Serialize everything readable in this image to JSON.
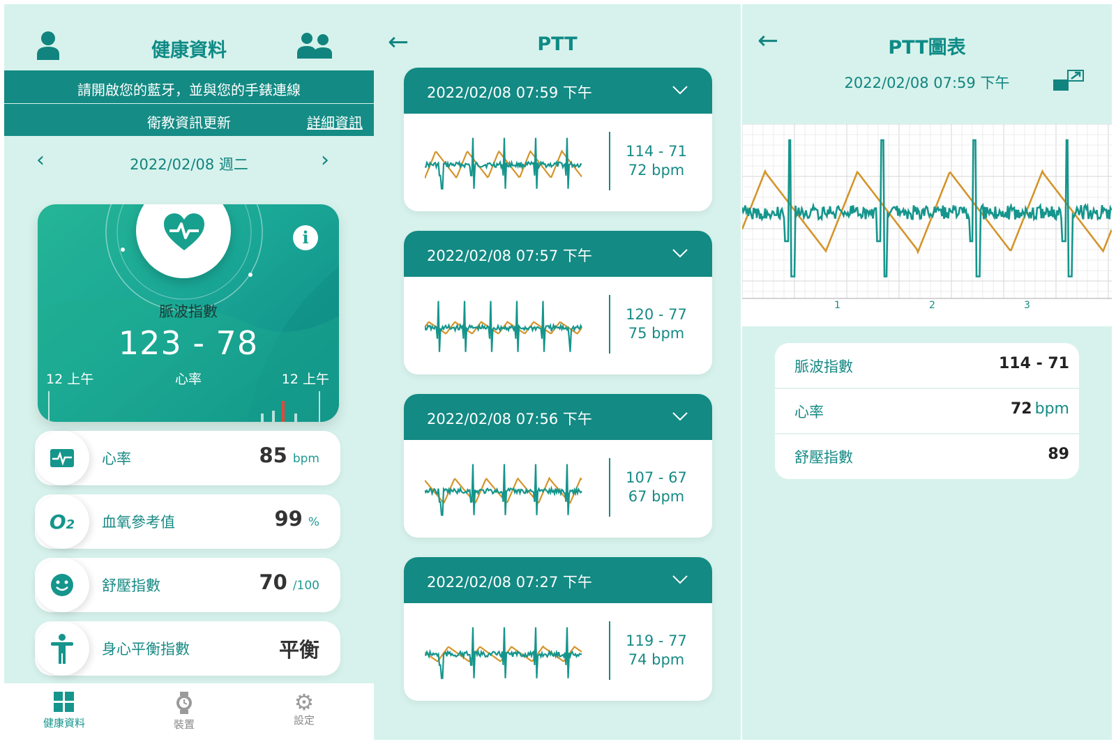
{
  "colors": {
    "teal_dark": "#138a83",
    "teal_text": "#178a85",
    "panel_bg": "#d7f2ec",
    "ecg_teal": "#15958c",
    "ppg_orange": "#d4942a",
    "alert_red": "#e04a3a"
  },
  "panel1": {
    "title": "健康資料",
    "banner_bluetooth": "請開啟您的藍牙，並與您的手錶連線",
    "banner_update": "衛教資訊更新",
    "banner_link": "詳細資訊",
    "date": "2022/02/08 週二",
    "pulse_card": {
      "label": "脈波指數",
      "value": "123 - 78",
      "left_time": "12 上午",
      "center_label": "心率",
      "right_time": "12 上午"
    },
    "metrics": [
      {
        "label": "心率",
        "value": "85",
        "unit": "bpm",
        "icon": "heart-rate-icon"
      },
      {
        "label": "血氧參考值",
        "value": "99",
        "unit": "%",
        "icon": "o2-icon"
      },
      {
        "label": "舒壓指數",
        "value": "70",
        "unit": "/100",
        "icon": "smile-icon"
      },
      {
        "label": "身心平衡指數",
        "value": "平衡",
        "unit": "",
        "icon": "body-balance-icon"
      }
    ],
    "tabs": [
      {
        "label": "健康資料",
        "icon": "grid-icon",
        "active": true
      },
      {
        "label": "裝置",
        "icon": "watch-icon",
        "active": false
      },
      {
        "label": "設定",
        "icon": "gear-icon",
        "active": false
      }
    ]
  },
  "panel2": {
    "title": "PTT",
    "records": [
      {
        "date": "2022/02/08 07:59 下午",
        "range": "114 - 71",
        "hr": "72 bpm"
      },
      {
        "date": "2022/02/08 07:57 下午",
        "range": "120 - 77",
        "hr": "75 bpm"
      },
      {
        "date": "2022/02/08 07:56 下午",
        "range": "107 - 67",
        "hr": "67 bpm"
      },
      {
        "date": "2022/02/08 07:27 下午",
        "range": "119 - 77",
        "hr": "74 bpm"
      }
    ]
  },
  "panel3": {
    "title": "PTT圖表",
    "date": "2022/02/08 07:59 下午",
    "axis_ticks": [
      "1",
      "2",
      "3"
    ],
    "stats": [
      {
        "label": "脈波指數",
        "value": "114 - 71",
        "unit": ""
      },
      {
        "label": "心率",
        "value": "72",
        "unit": "bpm"
      },
      {
        "label": "舒壓指數",
        "value": "89",
        "unit": ""
      }
    ]
  }
}
